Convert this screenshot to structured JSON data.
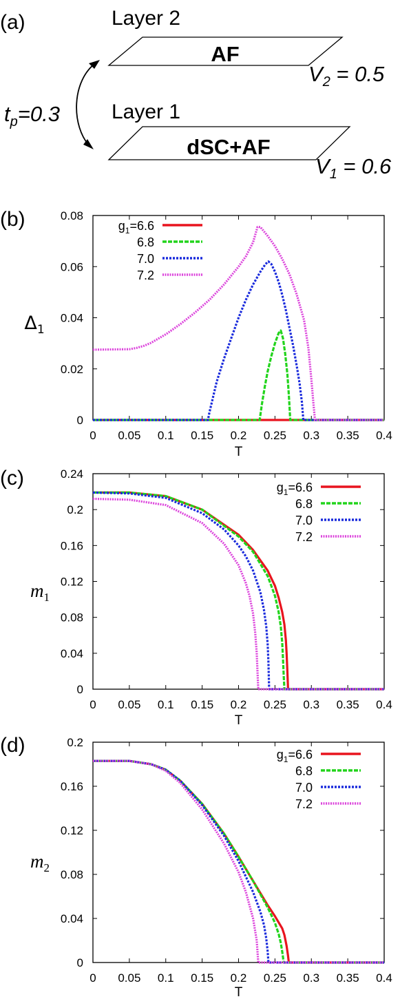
{
  "panel_a": {
    "label": "(a)",
    "layer2_title": "Layer 2",
    "layer2_phase": "AF",
    "v2_label": "V",
    "v2_sub": "2",
    "v2_value": " = 0.5",
    "layer1_title": "Layer 1",
    "layer1_phase": "dSC+AF",
    "v1_label": "V",
    "v1_sub": "1",
    "v1_value": " = 0.6",
    "tp_label": "t",
    "tp_sub": "p",
    "tp_value": "=0.3"
  },
  "chart_data": [
    {
      "panel": "(b)",
      "type": "line",
      "xlabel": "T",
      "ylabel_main": "Δ",
      "ylabel_sub": "1",
      "xlim": [
        0,
        0.4
      ],
      "ylim": [
        0,
        0.08
      ],
      "xticks": [
        "0",
        "0.05",
        "0.1",
        "0.15",
        "0.2",
        "0.25",
        "0.3",
        "0.35",
        "0.4"
      ],
      "yticks": [
        "0",
        "0.02",
        "0.04",
        "0.06",
        "0.08"
      ],
      "legend_placement": "top-left",
      "series": [
        {
          "name": "g1=6.6",
          "legend_prefix": "g",
          "legend_sub": "1",
          "legend_suffix": "=6.6",
          "color": "#e8141e",
          "dash": "",
          "points": [
            [
              0,
              0
            ],
            [
              0.4,
              0
            ]
          ]
        },
        {
          "name": "6.8",
          "legend_prefix": "",
          "legend_sub": "",
          "legend_suffix": "6.8",
          "color": "#22d41c",
          "dash": "6,2",
          "points": [
            [
              0,
              0
            ],
            [
              0.229,
              0
            ],
            [
              0.232,
              0.006
            ],
            [
              0.236,
              0.013
            ],
            [
              0.24,
              0.019
            ],
            [
              0.245,
              0.025
            ],
            [
              0.25,
              0.03
            ],
            [
              0.255,
              0.034
            ],
            [
              0.258,
              0.035
            ],
            [
              0.261,
              0.032
            ],
            [
              0.264,
              0.026
            ],
            [
              0.267,
              0.018
            ],
            [
              0.269,
              0.01
            ],
            [
              0.271,
              0
            ],
            [
              0.4,
              0
            ]
          ]
        },
        {
          "name": "7.0",
          "legend_prefix": "",
          "legend_sub": "",
          "legend_suffix": "7.0",
          "color": "#1a2bdc",
          "dash": "3,2",
          "points": [
            [
              0,
              0
            ],
            [
              0.158,
              0
            ],
            [
              0.16,
              0.003
            ],
            [
              0.165,
              0.009
            ],
            [
              0.17,
              0.015
            ],
            [
              0.18,
              0.024
            ],
            [
              0.19,
              0.032
            ],
            [
              0.2,
              0.04
            ],
            [
              0.21,
              0.047
            ],
            [
              0.22,
              0.053
            ],
            [
              0.23,
              0.058
            ],
            [
              0.237,
              0.061
            ],
            [
              0.241,
              0.062
            ],
            [
              0.245,
              0.061
            ],
            [
              0.25,
              0.058
            ],
            [
              0.255,
              0.054
            ],
            [
              0.26,
              0.049
            ],
            [
              0.265,
              0.043
            ],
            [
              0.27,
              0.036
            ],
            [
              0.275,
              0.029
            ],
            [
              0.28,
              0.021
            ],
            [
              0.284,
              0.014
            ],
            [
              0.287,
              0.007
            ],
            [
              0.289,
              0
            ],
            [
              0.4,
              0
            ]
          ]
        },
        {
          "name": "7.2",
          "legend_prefix": "",
          "legend_sub": "",
          "legend_suffix": "7.2",
          "color": "#dc44dc",
          "dash": "2,1.5",
          "points": [
            [
              0,
              0.0275
            ],
            [
              0.05,
              0.0277
            ],
            [
              0.06,
              0.0282
            ],
            [
              0.07,
              0.029
            ],
            [
              0.08,
              0.0302
            ],
            [
              0.1,
              0.0335
            ],
            [
              0.12,
              0.0375
            ],
            [
              0.14,
              0.042
            ],
            [
              0.16,
              0.047
            ],
            [
              0.18,
              0.053
            ],
            [
              0.2,
              0.06
            ],
            [
              0.21,
              0.064
            ],
            [
              0.22,
              0.0695
            ],
            [
              0.226,
              0.0755
            ],
            [
              0.23,
              0.0755
            ],
            [
              0.24,
              0.072
            ],
            [
              0.25,
              0.068
            ],
            [
              0.26,
              0.063
            ],
            [
              0.27,
              0.057
            ],
            [
              0.28,
              0.049
            ],
            [
              0.29,
              0.039
            ],
            [
              0.296,
              0.028
            ],
            [
              0.3,
              0.016
            ],
            [
              0.303,
              0.006
            ],
            [
              0.305,
              0
            ],
            [
              0.4,
              0
            ]
          ]
        }
      ]
    },
    {
      "panel": "(c)",
      "type": "line",
      "xlabel": "T",
      "ylabel_main": "m",
      "ylabel_sub": "1",
      "xlim": [
        0,
        0.4
      ],
      "ylim": [
        0,
        0.24
      ],
      "xticks": [
        "0",
        "0.05",
        "0.1",
        "0.15",
        "0.2",
        "0.25",
        "0.3",
        "0.35",
        "0.4"
      ],
      "yticks": [
        "0",
        "0.04",
        "0.08",
        "0.12",
        "0.16",
        "0.2",
        "0.24"
      ],
      "legend_placement": "top-right",
      "series": [
        {
          "name": "g1=6.6",
          "legend_prefix": "g",
          "legend_sub": "1",
          "legend_suffix": "=6.6",
          "color": "#e8141e",
          "dash": "",
          "points": [
            [
              0,
              0.219
            ],
            [
              0.05,
              0.219
            ],
            [
              0.1,
              0.215
            ],
            [
              0.15,
              0.2
            ],
            [
              0.2,
              0.172
            ],
            [
              0.22,
              0.155
            ],
            [
              0.24,
              0.132
            ],
            [
              0.25,
              0.115
            ],
            [
              0.255,
              0.102
            ],
            [
              0.26,
              0.086
            ],
            [
              0.263,
              0.072
            ],
            [
              0.265,
              0.055
            ],
            [
              0.266,
              0.04
            ],
            [
              0.267,
              0.02
            ],
            [
              0.268,
              0
            ],
            [
              0.4,
              0
            ]
          ]
        },
        {
          "name": "6.8",
          "legend_prefix": "",
          "legend_sub": "",
          "legend_suffix": "6.8",
          "color": "#22d41c",
          "dash": "6,2",
          "points": [
            [
              0,
              0.219
            ],
            [
              0.05,
              0.219
            ],
            [
              0.1,
              0.215
            ],
            [
              0.15,
              0.2
            ],
            [
              0.2,
              0.17
            ],
            [
              0.22,
              0.153
            ],
            [
              0.24,
              0.126
            ],
            [
              0.25,
              0.104
            ],
            [
              0.255,
              0.086
            ],
            [
              0.258,
              0.07
            ],
            [
              0.26,
              0.052
            ],
            [
              0.261,
              0.035
            ],
            [
              0.262,
              0.015
            ],
            [
              0.263,
              0
            ],
            [
              0.4,
              0
            ]
          ]
        },
        {
          "name": "7.0",
          "legend_prefix": "",
          "legend_sub": "",
          "legend_suffix": "7.0",
          "color": "#1a2bdc",
          "dash": "3,2",
          "points": [
            [
              0,
              0.219
            ],
            [
              0.05,
              0.218
            ],
            [
              0.1,
              0.213
            ],
            [
              0.15,
              0.196
            ],
            [
              0.18,
              0.178
            ],
            [
              0.2,
              0.16
            ],
            [
              0.21,
              0.148
            ],
            [
              0.22,
              0.132
            ],
            [
              0.23,
              0.108
            ],
            [
              0.235,
              0.088
            ],
            [
              0.238,
              0.07
            ],
            [
              0.24,
              0.05
            ],
            [
              0.241,
              0.03
            ],
            [
              0.242,
              0
            ],
            [
              0.4,
              0
            ]
          ]
        },
        {
          "name": "7.2",
          "legend_prefix": "",
          "legend_sub": "",
          "legend_suffix": "7.2",
          "color": "#dc44dc",
          "dash": "2,1.5",
          "points": [
            [
              0,
              0.212
            ],
            [
              0.05,
              0.211
            ],
            [
              0.1,
              0.205
            ],
            [
              0.15,
              0.185
            ],
            [
              0.18,
              0.162
            ],
            [
              0.2,
              0.138
            ],
            [
              0.21,
              0.118
            ],
            [
              0.215,
              0.104
            ],
            [
              0.22,
              0.084
            ],
            [
              0.223,
              0.062
            ],
            [
              0.225,
              0.04
            ],
            [
              0.226,
              0.02
            ],
            [
              0.227,
              0
            ],
            [
              0.4,
              0
            ]
          ]
        }
      ]
    },
    {
      "panel": "(d)",
      "type": "line",
      "xlabel": "T",
      "ylabel_main": "m",
      "ylabel_sub": "2",
      "xlim": [
        0,
        0.4
      ],
      "ylim": [
        0,
        0.2
      ],
      "xticks": [
        "0",
        "0.05",
        "0.1",
        "0.15",
        "0.2",
        "0.25",
        "0.3",
        "0.35",
        "0.4"
      ],
      "yticks": [
        "0",
        "0.04",
        "0.08",
        "0.12",
        "0.16",
        "0.2"
      ],
      "legend_placement": "top-right",
      "series": [
        {
          "name": "g1=6.6",
          "legend_prefix": "g",
          "legend_sub": "1",
          "legend_suffix": "=6.6",
          "color": "#e8141e",
          "dash": "",
          "points": [
            [
              0,
              0.183
            ],
            [
              0.05,
              0.183
            ],
            [
              0.08,
              0.18
            ],
            [
              0.1,
              0.175
            ],
            [
              0.12,
              0.165
            ],
            [
              0.15,
              0.144
            ],
            [
              0.18,
              0.117
            ],
            [
              0.2,
              0.096
            ],
            [
              0.22,
              0.074
            ],
            [
              0.24,
              0.052
            ],
            [
              0.25,
              0.042
            ],
            [
              0.26,
              0.031
            ],
            [
              0.263,
              0.025
            ],
            [
              0.266,
              0.015
            ],
            [
              0.268,
              0.006
            ],
            [
              0.269,
              0
            ],
            [
              0.4,
              0
            ]
          ]
        },
        {
          "name": "6.8",
          "legend_prefix": "",
          "legend_sub": "",
          "legend_suffix": "6.8",
          "color": "#22d41c",
          "dash": "6,2",
          "points": [
            [
              0,
              0.183
            ],
            [
              0.05,
              0.183
            ],
            [
              0.08,
              0.18
            ],
            [
              0.1,
              0.175
            ],
            [
              0.12,
              0.165
            ],
            [
              0.15,
              0.144
            ],
            [
              0.18,
              0.117
            ],
            [
              0.2,
              0.096
            ],
            [
              0.22,
              0.074
            ],
            [
              0.24,
              0.05
            ],
            [
              0.25,
              0.036
            ],
            [
              0.255,
              0.026
            ],
            [
              0.258,
              0.018
            ],
            [
              0.26,
              0.01
            ],
            [
              0.262,
              0
            ],
            [
              0.4,
              0
            ]
          ]
        },
        {
          "name": "7.0",
          "legend_prefix": "",
          "legend_sub": "",
          "legend_suffix": "7.0",
          "color": "#1a2bdc",
          "dash": "3,2",
          "points": [
            [
              0,
              0.183
            ],
            [
              0.05,
              0.183
            ],
            [
              0.08,
              0.18
            ],
            [
              0.1,
              0.175
            ],
            [
              0.12,
              0.165
            ],
            [
              0.15,
              0.143
            ],
            [
              0.18,
              0.115
            ],
            [
              0.2,
              0.092
            ],
            [
              0.22,
              0.064
            ],
            [
              0.23,
              0.046
            ],
            [
              0.235,
              0.034
            ],
            [
              0.238,
              0.022
            ],
            [
              0.24,
              0.01
            ],
            [
              0.241,
              0
            ],
            [
              0.4,
              0
            ]
          ]
        },
        {
          "name": "7.2",
          "legend_prefix": "",
          "legend_sub": "",
          "legend_suffix": "7.2",
          "color": "#dc44dc",
          "dash": "2,1.5",
          "points": [
            [
              0,
              0.183
            ],
            [
              0.05,
              0.183
            ],
            [
              0.08,
              0.18
            ],
            [
              0.1,
              0.174
            ],
            [
              0.12,
              0.163
            ],
            [
              0.15,
              0.139
            ],
            [
              0.18,
              0.108
            ],
            [
              0.2,
              0.082
            ],
            [
              0.21,
              0.064
            ],
            [
              0.22,
              0.04
            ],
            [
              0.225,
              0.02
            ],
            [
              0.227,
              0
            ],
            [
              0.4,
              0
            ]
          ]
        }
      ]
    }
  ]
}
